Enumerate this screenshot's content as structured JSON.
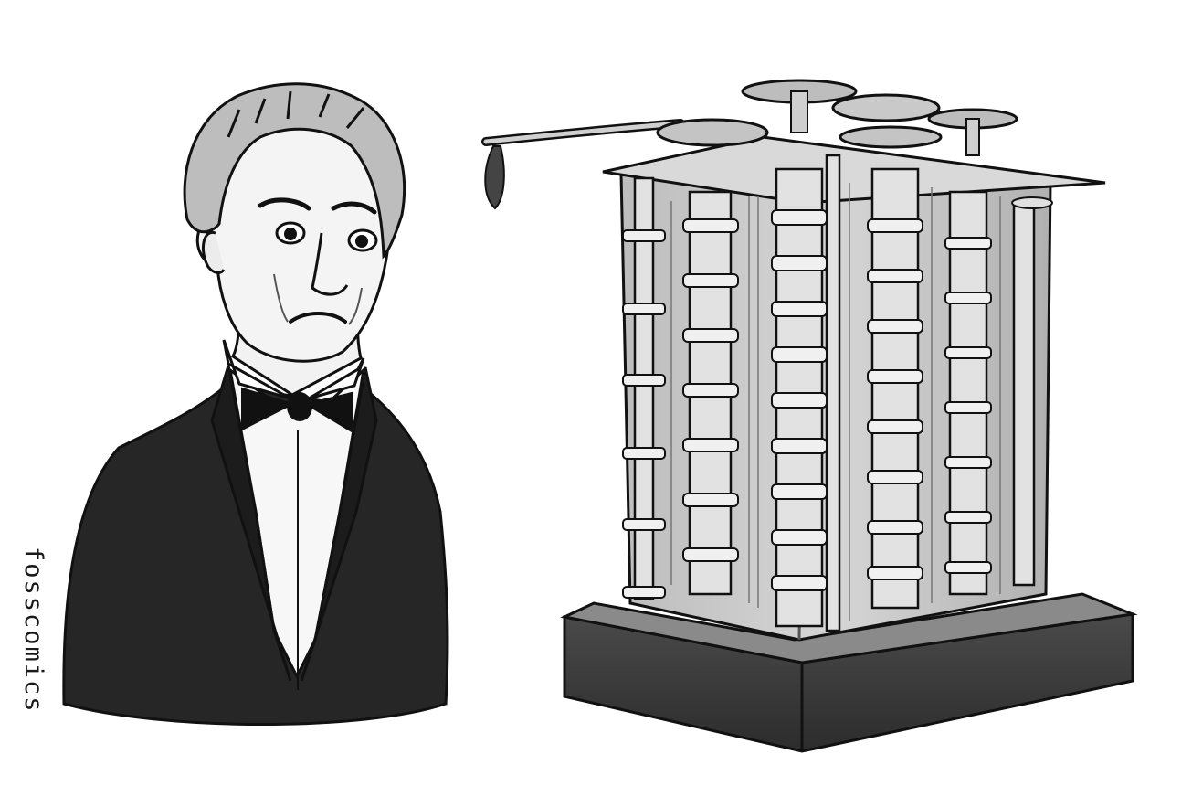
{
  "signature": "fosscomics",
  "figures": {
    "portrait": "man-in-tuxedo-illustration",
    "machine": "difference-engine-illustration"
  },
  "colors": {
    "ink": "#1a1a1a",
    "jacket": "#262626",
    "machine_fill": "#cfcfcf",
    "machine_shadow": "#9a9a9a",
    "base": "#3a3a3a",
    "paper": "#ffffff"
  }
}
